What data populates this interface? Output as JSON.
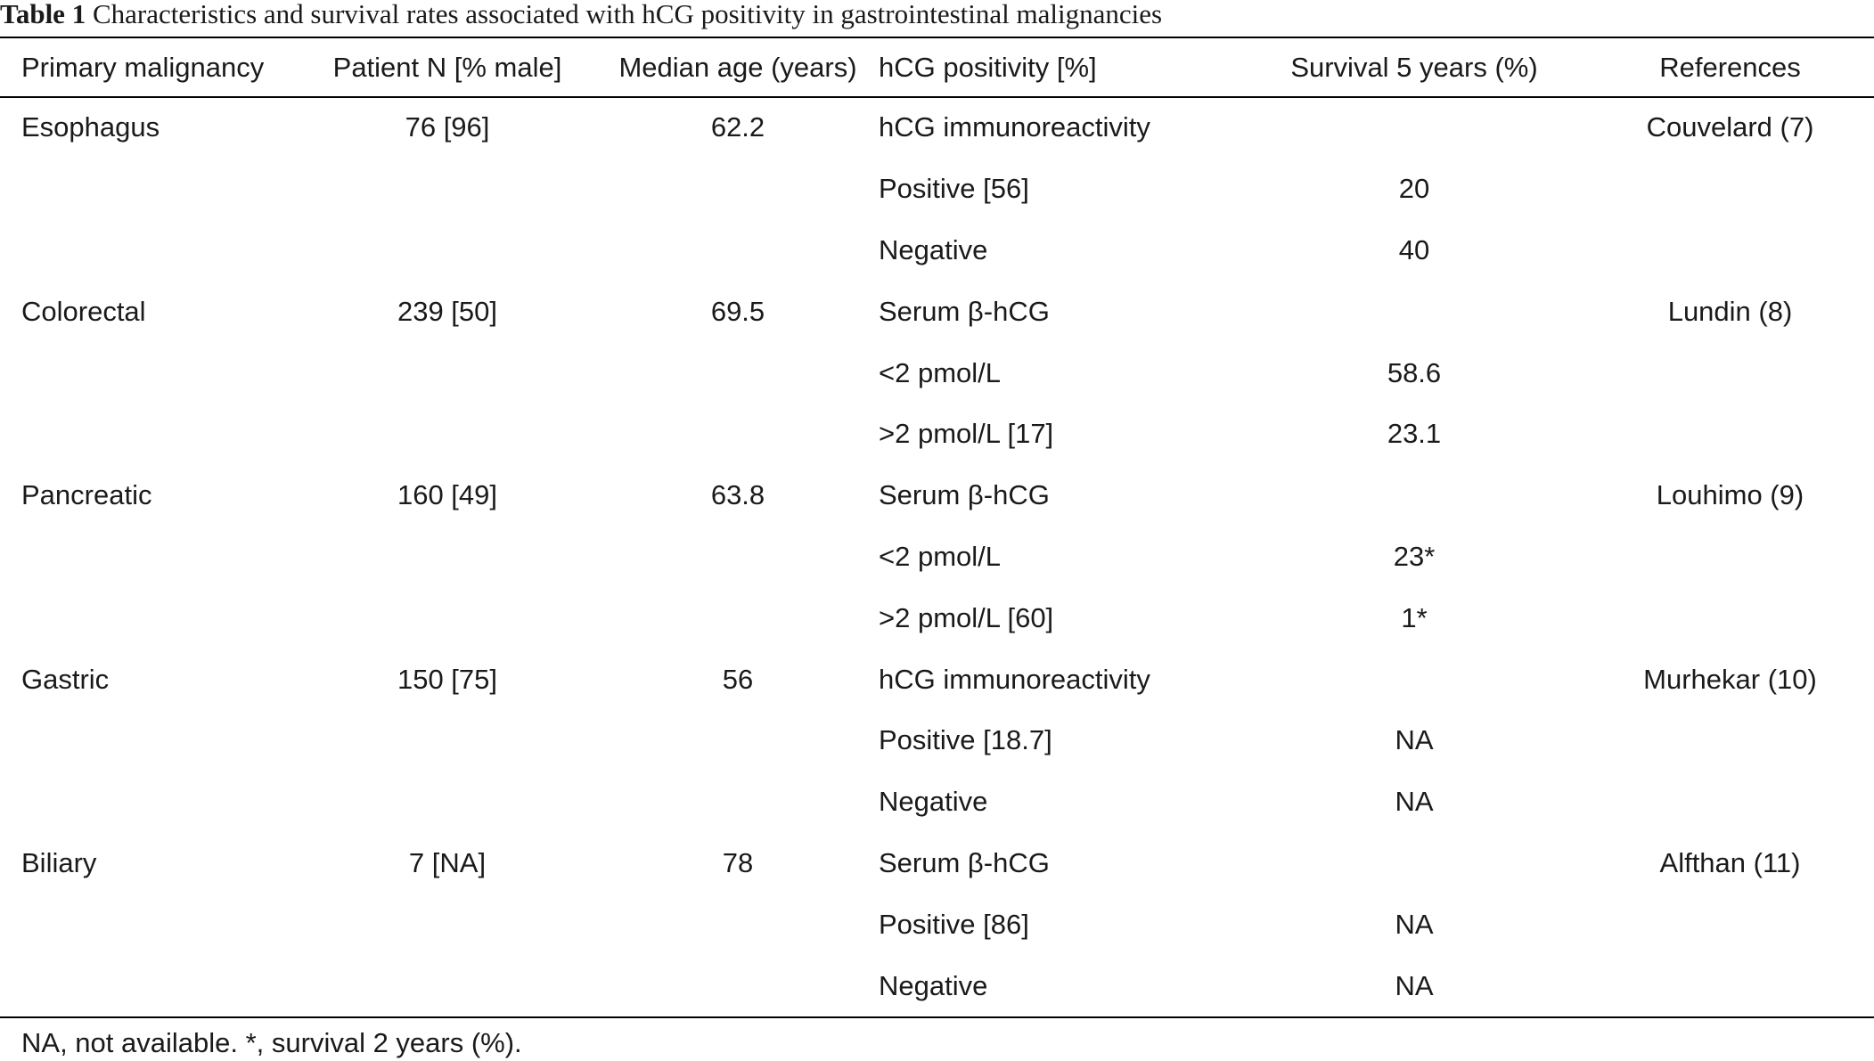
{
  "caption": {
    "label": "Table 1",
    "text": "Characteristics and survival rates associated with hCG positivity in gastrointestinal malignancies"
  },
  "columns": [
    "Primary malignancy",
    "Patient N [% male]",
    "Median age (years)",
    "hCG positivity [%]",
    "Survival 5 years (%)",
    "References"
  ],
  "rows": [
    [
      "Esophagus",
      "76 [96]",
      "62.2",
      "hCG immunoreactivity",
      "",
      "Couvelard (7)"
    ],
    [
      "",
      "",
      "",
      "Positive [56]",
      "20",
      ""
    ],
    [
      "",
      "",
      "",
      "Negative",
      "40",
      ""
    ],
    [
      "Colorectal",
      "239 [50]",
      "69.5",
      "Serum β-hCG",
      "",
      "Lundin (8)"
    ],
    [
      "",
      "",
      "",
      "<2 pmol/L",
      "58.6",
      ""
    ],
    [
      "",
      "",
      "",
      ">2 pmol/L [17]",
      "23.1",
      ""
    ],
    [
      "Pancreatic",
      "160 [49]",
      "63.8",
      "Serum β-hCG",
      "",
      "Louhimo (9)"
    ],
    [
      "",
      "",
      "",
      "<2 pmol/L",
      "23*",
      ""
    ],
    [
      "",
      "",
      "",
      ">2 pmol/L [60]",
      "1*",
      ""
    ],
    [
      "Gastric",
      "150 [75]",
      "56",
      "hCG immunoreactivity",
      "",
      "Murhekar (10)"
    ],
    [
      "",
      "",
      "",
      "Positive [18.7]",
      "NA",
      ""
    ],
    [
      "",
      "",
      "",
      "Negative",
      "NA",
      ""
    ],
    [
      "Biliary",
      "7 [NA]",
      "78",
      "Serum β-hCG",
      "",
      "Alfthan (11)"
    ],
    [
      "",
      "",
      "",
      "Positive [86]",
      "NA",
      ""
    ],
    [
      "",
      "",
      "",
      "Negative",
      "NA",
      ""
    ]
  ],
  "footnote": "NA, not available. *, survival 2 years (%)."
}
